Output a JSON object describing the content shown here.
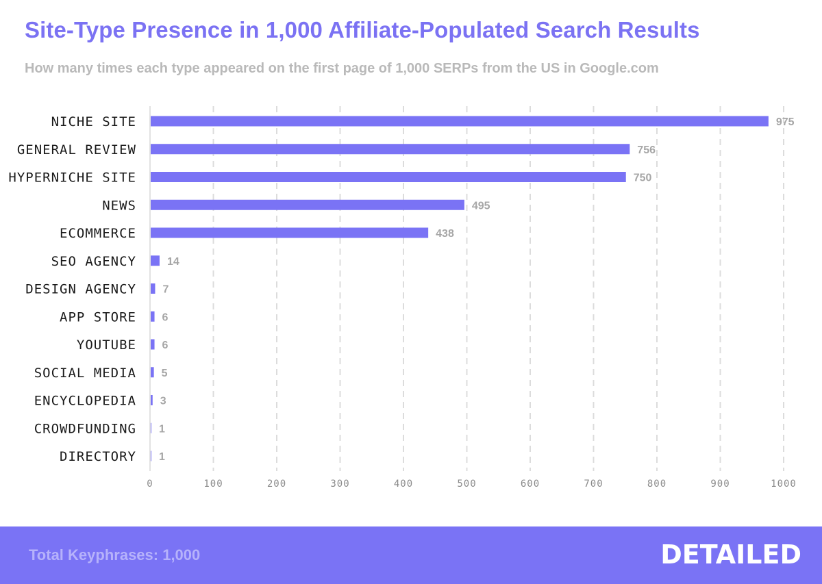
{
  "title": "Site-Type Presence in 1,000 Affiliate-Populated Search Results",
  "subtitle": "How many times each type appeared on the first page of 1,000 SERPs from the US in Google.com",
  "colors": {
    "title": "#7b72f3",
    "bar": "#7a73f5",
    "value_label": "#a6a6a6",
    "grid": "#dcdcdc",
    "footer_bg": "#7a73f5"
  },
  "footer": {
    "note": "Total Keyphrases: 1,000",
    "brand": "DETAILED"
  },
  "chart_data": {
    "type": "bar",
    "orientation": "horizontal",
    "categories": [
      "NICHE SITE",
      "GENERAL REVIEW",
      "HYPERNICHE SITE",
      "NEWS",
      "ECOMMERCE",
      "SEO AGENCY",
      "DESIGN AGENCY",
      "APP STORE",
      "YOUTUBE",
      "SOCIAL MEDIA",
      "ENCYCLOPEDIA",
      "CROWDFUNDING",
      "DIRECTORY"
    ],
    "values": [
      975,
      756,
      750,
      495,
      438,
      14,
      7,
      6,
      6,
      5,
      3,
      1,
      1
    ],
    "xlim": [
      0,
      1000
    ],
    "x_ticks": [
      0,
      100,
      200,
      300,
      400,
      500,
      600,
      700,
      800,
      900,
      1000
    ],
    "grid": "vertical dashed",
    "data_labels": true
  }
}
